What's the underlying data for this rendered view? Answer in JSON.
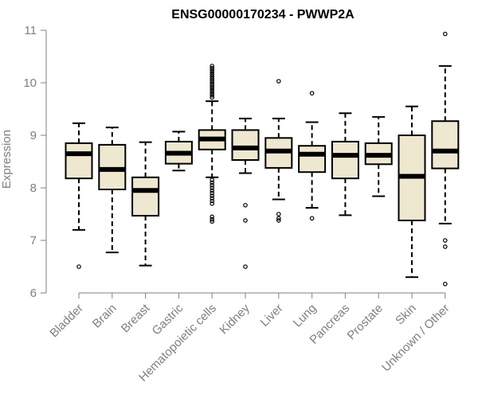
{
  "chart_data": {
    "type": "boxplot",
    "title": "ENSG00000170234 - PWWP2A",
    "xlabel": "",
    "ylabel": "Expression",
    "ylim": [
      6,
      11
    ],
    "yticks": [
      6,
      7,
      8,
      9,
      10,
      11
    ],
    "box_fill": "#efe8d0",
    "axis_color": "#7f7f7f",
    "categories": [
      "Bladder",
      "Brain",
      "Breast",
      "Gastric",
      "Hematopoietic cells",
      "Kidney",
      "Liver",
      "Lung",
      "Pancreas",
      "Prostate",
      "Skin",
      "Unknown / Other"
    ],
    "boxes": [
      {
        "name": "Bladder",
        "whisker_low": 7.2,
        "q1": 8.18,
        "median": 8.65,
        "q3": 8.85,
        "whisker_high": 9.23,
        "outliers": [
          6.5
        ]
      },
      {
        "name": "Brain",
        "whisker_low": 6.77,
        "q1": 7.97,
        "median": 8.35,
        "q3": 8.82,
        "whisker_high": 9.15,
        "outliers": []
      },
      {
        "name": "Breast",
        "whisker_low": 6.52,
        "q1": 7.47,
        "median": 7.95,
        "q3": 8.2,
        "whisker_high": 8.87,
        "outliers": []
      },
      {
        "name": "Gastric",
        "whisker_low": 8.33,
        "q1": 8.46,
        "median": 8.66,
        "q3": 8.88,
        "whisker_high": 9.07,
        "outliers": []
      },
      {
        "name": "Hematopoietic cells",
        "whisker_low": 8.2,
        "q1": 8.73,
        "median": 8.93,
        "q3": 9.1,
        "whisker_high": 9.65,
        "outliers": [
          10.32,
          10.28,
          10.24,
          10.2,
          10.16,
          10.12,
          10.08,
          10.04,
          10.0,
          9.96,
          9.92,
          9.88,
          9.84,
          9.8,
          9.76,
          9.72,
          8.15,
          8.1,
          8.05,
          8.0,
          7.95,
          7.9,
          7.85,
          7.8,
          7.75,
          7.7,
          7.45,
          7.4,
          7.36
        ]
      },
      {
        "name": "Kidney",
        "whisker_low": 8.28,
        "q1": 8.53,
        "median": 8.76,
        "q3": 9.1,
        "whisker_high": 9.32,
        "outliers": [
          7.67,
          7.38,
          6.5
        ]
      },
      {
        "name": "Liver",
        "whisker_low": 7.78,
        "q1": 8.38,
        "median": 8.7,
        "q3": 8.95,
        "whisker_high": 9.32,
        "outliers": [
          10.03,
          7.5,
          7.42,
          7.38
        ]
      },
      {
        "name": "Lung",
        "whisker_low": 7.62,
        "q1": 8.3,
        "median": 8.64,
        "q3": 8.8,
        "whisker_high": 9.25,
        "outliers": [
          9.8,
          7.42
        ]
      },
      {
        "name": "Pancreas",
        "whisker_low": 7.48,
        "q1": 8.18,
        "median": 8.62,
        "q3": 8.88,
        "whisker_high": 9.42,
        "outliers": []
      },
      {
        "name": "Prostate",
        "whisker_low": 7.84,
        "q1": 8.45,
        "median": 8.62,
        "q3": 8.85,
        "whisker_high": 9.35,
        "outliers": []
      },
      {
        "name": "Skin",
        "whisker_low": 6.3,
        "q1": 7.38,
        "median": 8.22,
        "q3": 9.0,
        "whisker_high": 9.55,
        "outliers": []
      },
      {
        "name": "Unknown / Other",
        "whisker_low": 7.32,
        "q1": 8.37,
        "median": 8.7,
        "q3": 9.27,
        "whisker_high": 10.32,
        "outliers": [
          10.93,
          7.0,
          6.88,
          6.17
        ]
      }
    ]
  }
}
